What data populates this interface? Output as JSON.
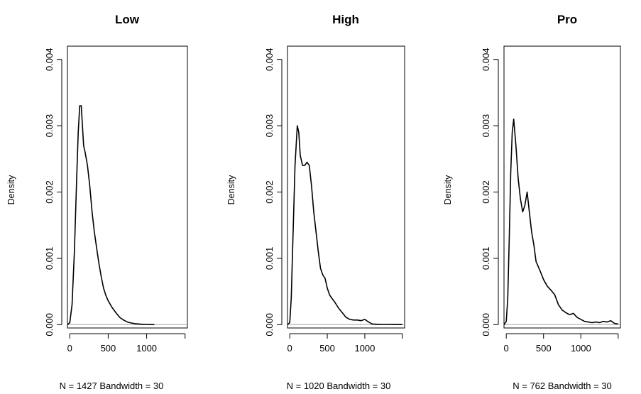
{
  "chart_data": [
    {
      "type": "line",
      "title": "Low",
      "xlabel": "N = 1427   Bandwidth = 30",
      "ylabel": "Density",
      "xlim": [
        -30,
        1530
      ],
      "ylim": [
        -5e-05,
        0.0042
      ],
      "xticks": [
        "0",
        "500",
        "1000"
      ],
      "yticks": [
        "0.000",
        "0.001",
        "0.002",
        "0.003",
        "0.004"
      ],
      "baseline_color": "#bebebe",
      "line_color": "#000000",
      "x": [
        -30,
        0,
        30,
        60,
        90,
        110,
        130,
        150,
        160,
        180,
        200,
        230,
        260,
        290,
        320,
        350,
        380,
        410,
        440,
        470,
        500,
        550,
        600,
        650,
        700,
        750,
        800,
        850,
        900,
        950,
        1000,
        1050,
        1100
      ],
      "y": [
        0.0,
        3e-05,
        0.0003,
        0.0011,
        0.0022,
        0.0029,
        0.0033,
        0.0033,
        0.0031,
        0.0027,
        0.0026,
        0.0024,
        0.0021,
        0.0017,
        0.0014,
        0.00115,
        0.00092,
        0.00072,
        0.00055,
        0.00044,
        0.00036,
        0.00026,
        0.00018,
        0.00011,
        7e-05,
        4e-05,
        2.5e-05,
        1.5e-05,
        1e-05,
        6e-06,
        3e-06,
        1e-06,
        0.0
      ]
    },
    {
      "type": "line",
      "title": "High",
      "xlabel": "N = 1020   Bandwidth = 30",
      "ylabel": "Density",
      "xlim": [
        -30,
        1530
      ],
      "ylim": [
        -5e-05,
        0.0042
      ],
      "xticks": [
        "0",
        "500",
        "1000"
      ],
      "yticks": [
        "0.000",
        "0.001",
        "0.002",
        "0.003",
        "0.004"
      ],
      "baseline_color": "#bebebe",
      "line_color": "#000000",
      "x": [
        -30,
        0,
        20,
        40,
        70,
        100,
        120,
        140,
        170,
        200,
        230,
        260,
        290,
        320,
        350,
        380,
        410,
        440,
        470,
        500,
        530,
        560,
        600,
        650,
        700,
        750,
        800,
        850,
        900,
        950,
        1000,
        1050,
        1100,
        1200,
        1300,
        1400,
        1500
      ],
      "y": [
        0.0,
        3e-05,
        0.0004,
        0.0012,
        0.0024,
        0.003,
        0.0029,
        0.00255,
        0.0024,
        0.0024,
        0.00245,
        0.0024,
        0.0021,
        0.0017,
        0.0014,
        0.0011,
        0.00085,
        0.00075,
        0.0007,
        0.00055,
        0.00045,
        0.0004,
        0.00034,
        0.00025,
        0.00018,
        0.00011,
        8e-05,
        7e-05,
        7e-05,
        6e-05,
        8e-05,
        4e-05,
        1e-05,
        5e-06,
        3e-06,
        2e-06,
        1e-06
      ]
    },
    {
      "type": "line",
      "title": "Pro",
      "xlabel": "N = 762   Bandwidth = 30",
      "ylabel": "Density",
      "xlim": [
        -30,
        1530
      ],
      "ylim": [
        -5e-05,
        0.0042
      ],
      "xticks": [
        "0",
        "500",
        "1000"
      ],
      "yticks": [
        "0.000",
        "0.001",
        "0.002",
        "0.003",
        "0.004"
      ],
      "baseline_color": "#bebebe",
      "line_color": "#000000",
      "x": [
        -30,
        0,
        20,
        40,
        60,
        80,
        100,
        130,
        160,
        190,
        220,
        250,
        280,
        310,
        340,
        370,
        400,
        450,
        500,
        550,
        600,
        650,
        700,
        750,
        800,
        850,
        900,
        950,
        1000,
        1050,
        1100,
        1150,
        1200,
        1250,
        1300,
        1350,
        1400,
        1450,
        1500
      ],
      "y": [
        0.0,
        5e-05,
        0.0004,
        0.0013,
        0.0023,
        0.0029,
        0.0031,
        0.0027,
        0.0022,
        0.0019,
        0.0017,
        0.0018,
        0.002,
        0.0017,
        0.0014,
        0.0012,
        0.00095,
        0.00082,
        0.00068,
        0.00058,
        0.00052,
        0.00045,
        0.0003,
        0.00022,
        0.00018,
        0.00015,
        0.00017,
        0.00011,
        8e-05,
        5e-05,
        4e-05,
        3e-05,
        4e-05,
        3e-05,
        5e-05,
        4e-05,
        6e-05,
        2e-05,
        1e-05
      ]
    }
  ]
}
